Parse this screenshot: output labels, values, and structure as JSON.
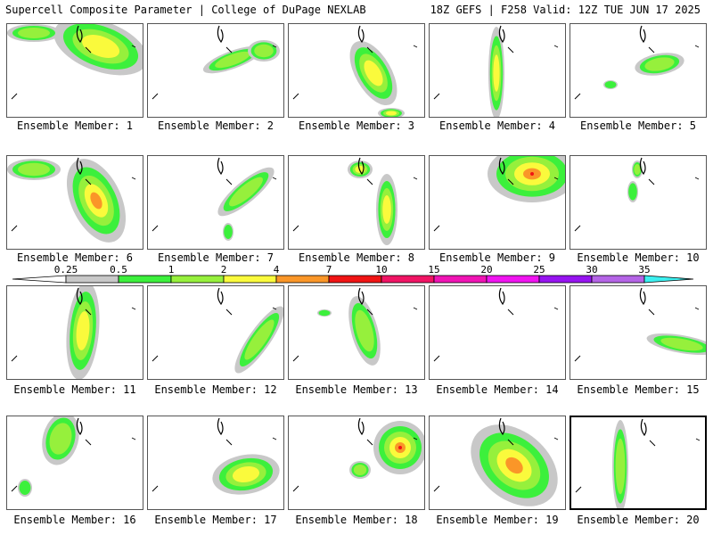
{
  "header": {
    "left": "Supercell Composite Parameter | College of DuPage NEXLAB",
    "right": "18Z GEFS | F258 Valid: 12Z TUE JUN 17 2025"
  },
  "legend": {
    "labels": [
      "0.25",
      "0.5",
      "1",
      "2",
      "4",
      "7",
      "10",
      "15",
      "20",
      "25",
      "30",
      "35"
    ],
    "colors": [
      "#c8c8c8",
      "#3cf03c",
      "#96f03c",
      "#fafa3c",
      "#fa9628",
      "#f01414",
      "#f01464",
      "#f014b4",
      "#f014f0",
      "#9614f0",
      "#b464e6",
      "#3cf0f0"
    ]
  },
  "members": [
    {
      "label": "Ensemble Member: 1",
      "selected": false
    },
    {
      "label": "Ensemble Member: 2",
      "selected": false
    },
    {
      "label": "Ensemble Member: 3",
      "selected": false
    },
    {
      "label": "Ensemble Member: 4",
      "selected": false
    },
    {
      "label": "Ensemble Member: 5",
      "selected": false
    },
    {
      "label": "Ensemble Member: 6",
      "selected": false
    },
    {
      "label": "Ensemble Member: 7",
      "selected": false
    },
    {
      "label": "Ensemble Member: 8",
      "selected": false
    },
    {
      "label": "Ensemble Member: 9",
      "selected": false
    },
    {
      "label": "Ensemble Member: 10",
      "selected": false
    },
    {
      "label": "Ensemble Member: 11",
      "selected": false
    },
    {
      "label": "Ensemble Member: 12",
      "selected": false
    },
    {
      "label": "Ensemble Member: 13",
      "selected": false
    },
    {
      "label": "Ensemble Member: 14",
      "selected": false
    },
    {
      "label": "Ensemble Member: 15",
      "selected": false
    },
    {
      "label": "Ensemble Member: 16",
      "selected": false
    },
    {
      "label": "Ensemble Member: 17",
      "selected": false
    },
    {
      "label": "Ensemble Member: 18",
      "selected": false
    },
    {
      "label": "Ensemble Member: 19",
      "selected": false
    },
    {
      "label": "Ensemble Member: 20",
      "selected": true
    }
  ]
}
